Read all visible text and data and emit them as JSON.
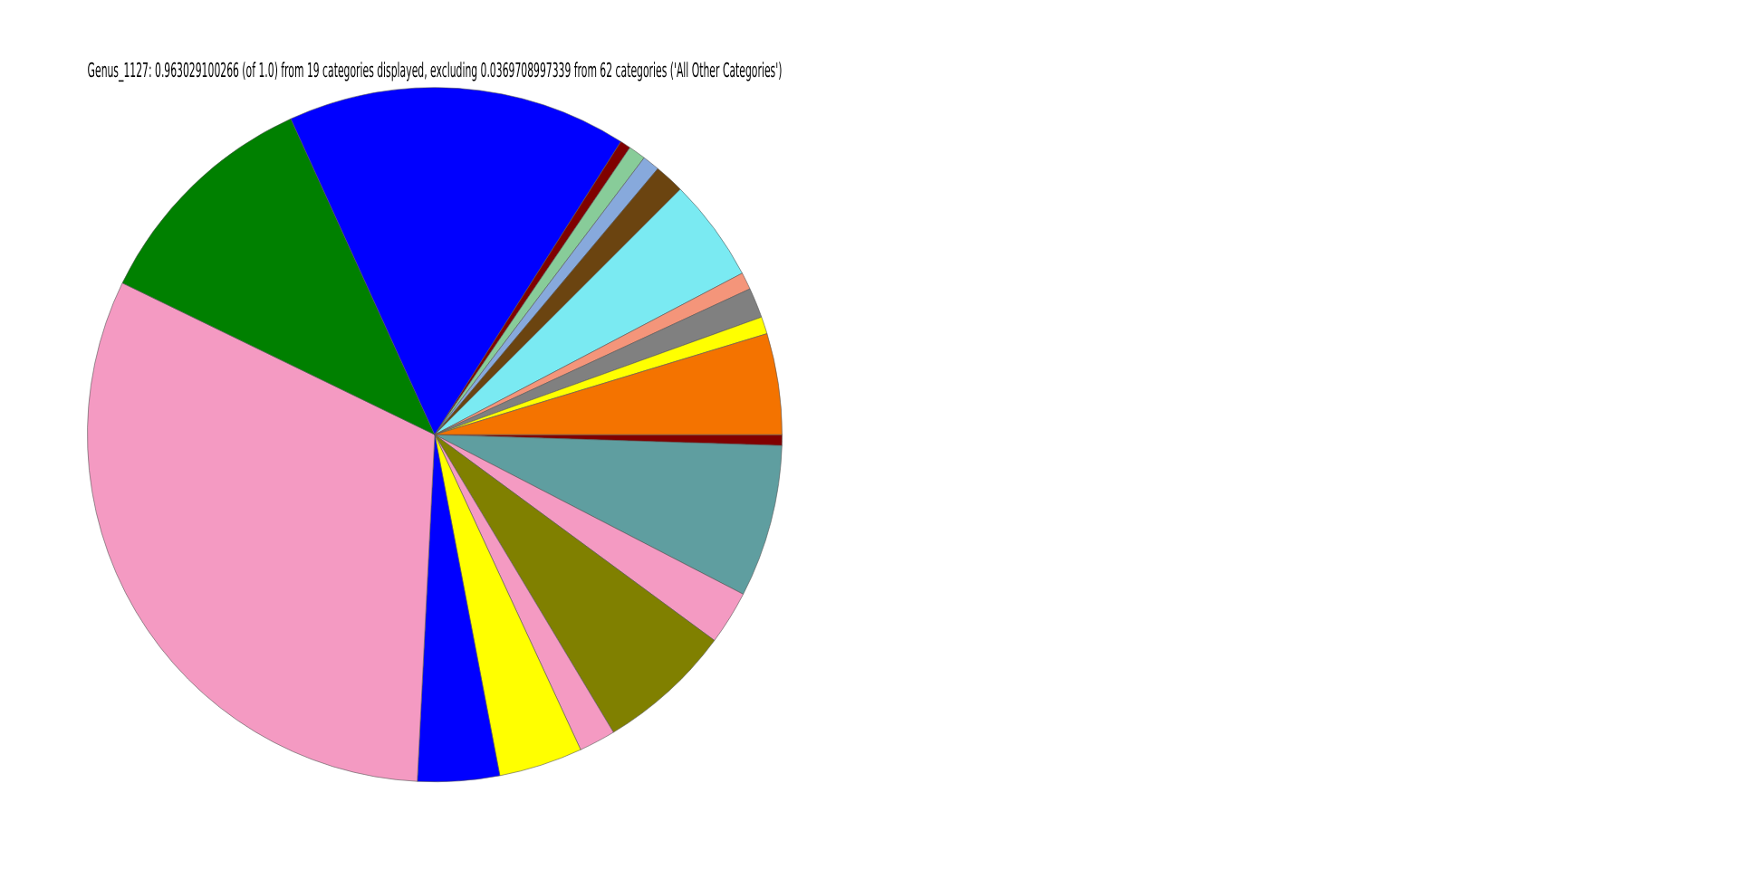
{
  "chart_data": {
    "type": "pie",
    "title": "Genus_1127: 0.963029100266 (of 1.0) from 19 categories displayed, excluding 0.0369708997339 from 62 categories ('All Other Categories')",
    "categories": [
      null,
      null,
      null,
      null,
      null,
      null,
      null,
      null,
      null,
      null,
      null,
      null,
      null,
      null,
      null,
      null,
      null,
      null,
      null
    ],
    "values": [
      0.5,
      7.1,
      2.5,
      6.3,
      1.7,
      3.9,
      3.8,
      31.4,
      11.0,
      15.8,
      0.5,
      0.8,
      0.8,
      1.4,
      4.8,
      0.8,
      1.4,
      0.8,
      4.7
    ],
    "colors": [
      "#800000",
      "#5f9ea0",
      "#f49ac2",
      "#808000",
      "#f49ac2",
      "#ffff00",
      "#0000ff",
      "#f49ac2",
      "#008000",
      "#0000ff",
      "#800000",
      "#88cc99",
      "#87a9dc",
      "#6b4410",
      "#7aeaf2",
      "#f4957a",
      "#808080",
      "#ffff00",
      "#f47300"
    ],
    "legend": false
  }
}
